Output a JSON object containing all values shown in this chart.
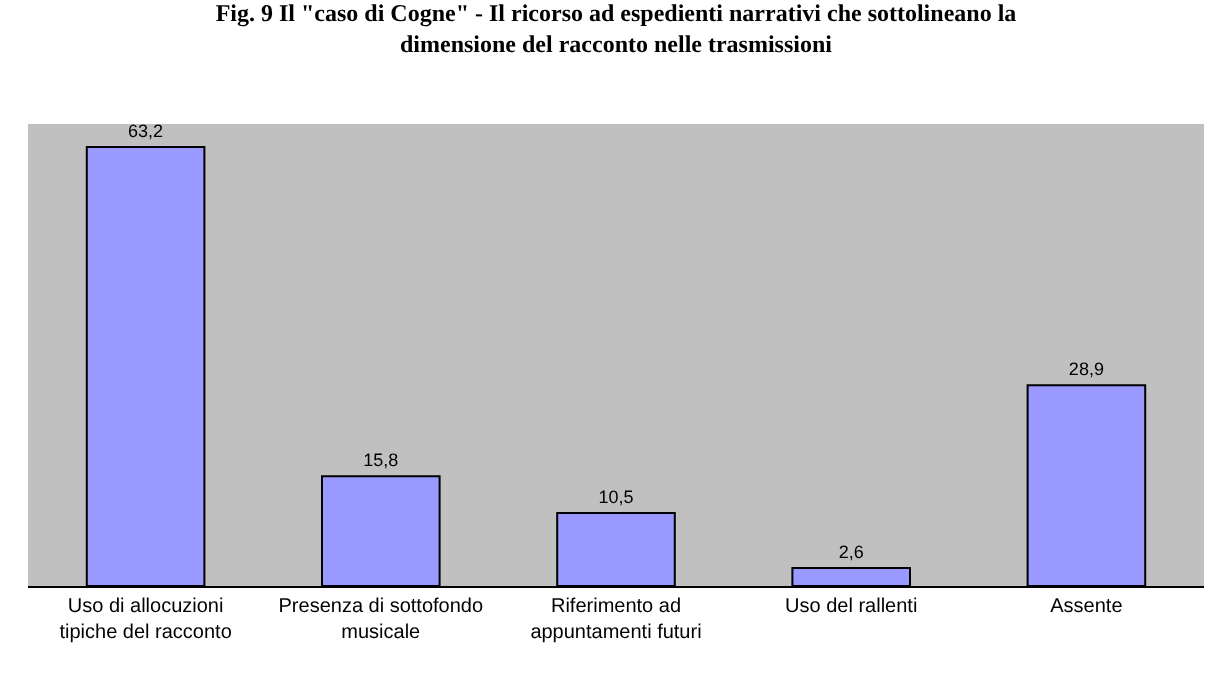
{
  "chart_data": {
    "type": "bar",
    "title": "Fig. 9 Il \"caso di Cogne\" - Il ricorso ad espedienti narrativi che sottolineano la dimensione del racconto nelle trasmissioni",
    "categories": [
      "Uso di allocuzioni tipiche del racconto",
      "Presenza di sottofondo musicale",
      "Riferimento ad appuntamenti futuri",
      "Uso del rallenti",
      "Assente"
    ],
    "values": [
      63.2,
      15.8,
      10.5,
      2.6,
      28.9
    ],
    "value_labels": [
      "63,2",
      "15,8",
      "10,5",
      "2,6",
      "28,9"
    ],
    "color": "#9999ff",
    "grid": false,
    "legend": false
  }
}
